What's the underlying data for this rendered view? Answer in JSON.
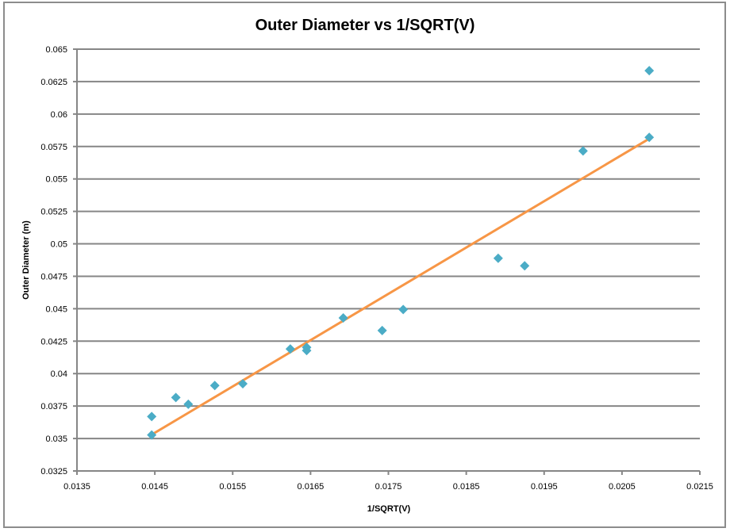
{
  "chart_data": {
    "type": "scatter",
    "title": "Outer Diameter vs 1/SQRT(V)",
    "xlabel": "1/SQRT(V)",
    "ylabel": "Outer Diameter (m)",
    "xlim": [
      0.0135,
      0.0215
    ],
    "ylim": [
      0.0325,
      0.065
    ],
    "xticks": [
      "0.0135",
      "0.0145",
      "0.0155",
      "0.0165",
      "0.0175",
      "0.0185",
      "0.0195",
      "0.0205",
      "0.0215"
    ],
    "yticks": [
      "0.0325",
      "0.035",
      "0.0375",
      "0.04",
      "0.0425",
      "0.045",
      "0.0475",
      "0.05",
      "0.0525",
      "0.055",
      "0.0575",
      "0.06",
      "0.0625",
      "0.065"
    ],
    "grid": "horizontal major gridlines",
    "legend": "none",
    "marker": "diamond",
    "colors": {
      "points": "#4bacc6",
      "trendline": "#f79646",
      "grid": "#868686"
    },
    "points": [
      {
        "x": 0.01446,
        "y": 0.03669
      },
      {
        "x": 0.01446,
        "y": 0.03527
      },
      {
        "x": 0.01477,
        "y": 0.03816
      },
      {
        "x": 0.01493,
        "y": 0.03764
      },
      {
        "x": 0.01527,
        "y": 0.03908
      },
      {
        "x": 0.01563,
        "y": 0.03922
      },
      {
        "x": 0.01624,
        "y": 0.0419
      },
      {
        "x": 0.01645,
        "y": 0.04202
      },
      {
        "x": 0.01645,
        "y": 0.04178
      },
      {
        "x": 0.01692,
        "y": 0.04429
      },
      {
        "x": 0.01742,
        "y": 0.04332
      },
      {
        "x": 0.01769,
        "y": 0.04494
      },
      {
        "x": 0.01891,
        "y": 0.04889
      },
      {
        "x": 0.01925,
        "y": 0.04831
      },
      {
        "x": 0.02,
        "y": 0.05716
      },
      {
        "x": 0.02085,
        "y": 0.0582
      },
      {
        "x": 0.02085,
        "y": 0.06334
      }
    ],
    "trendline": {
      "type": "linear",
      "x": [
        0.01446,
        0.02085
      ],
      "y": [
        0.0353,
        0.0581
      ]
    }
  }
}
